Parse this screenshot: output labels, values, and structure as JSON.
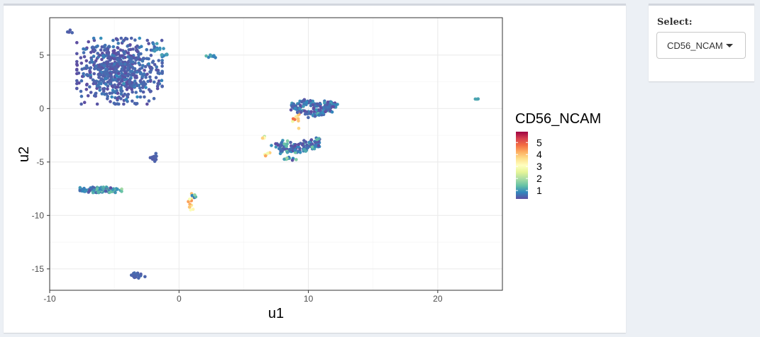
{
  "sidebar": {
    "select_label": "Select:",
    "selected_value": "CD56_NCAM"
  },
  "chart_data": {
    "type": "scatter",
    "xlabel": "u1",
    "ylabel": "u2",
    "xlim": [
      -10,
      25
    ],
    "ylim": [
      -17,
      8.5
    ],
    "x_ticks": [
      -10,
      0,
      10,
      20
    ],
    "x_tick_labels": [
      "-10",
      "0",
      "10",
      "20"
    ],
    "y_ticks": [
      -15,
      -10,
      -5,
      0,
      5
    ],
    "y_tick_labels": [
      "-15",
      "-10",
      "-5",
      "0",
      "5"
    ],
    "grid": true,
    "legend": {
      "title": "CD56_NCAM",
      "placement": "right",
      "colorscale": "Spectral",
      "range": [
        0.3,
        5.9
      ],
      "ticks": [
        1,
        2,
        3,
        4,
        5
      ],
      "tick_labels": [
        "1",
        "2",
        "3",
        "4",
        "5"
      ]
    },
    "colors": {
      "low": "#5e4fa2",
      "high": "#9e0142",
      "panel_border": "#333333",
      "grid": "#ebebeb"
    },
    "clusters": [
      {
        "cx": -4.6,
        "cy": 3.5,
        "sx": 1.5,
        "sy": 1.4,
        "n": 650,
        "value": 0.5,
        "value_sd": 0.15
      },
      {
        "cx": -1.6,
        "cy": 5.6,
        "sx": 0.3,
        "sy": 0.25,
        "n": 14,
        "value": 0.9,
        "value_sd": 0.2
      },
      {
        "cx": -1.0,
        "cy": 5.0,
        "sx": 0.2,
        "sy": 0.1,
        "n": 5,
        "value": 1.1,
        "value_sd": 0.2
      },
      {
        "cx": -8.4,
        "cy": 7.2,
        "sx": 0.1,
        "sy": 0.08,
        "n": 4,
        "value": 0.5,
        "value_sd": 0.05
      },
      {
        "cx": 2.5,
        "cy": 4.9,
        "sx": 0.18,
        "sy": 0.07,
        "n": 10,
        "value": 1.0,
        "value_sd": 0.3
      },
      {
        "cx": -1.9,
        "cy": -4.6,
        "sx": 0.15,
        "sy": 0.18,
        "n": 10,
        "value": 0.5,
        "value_sd": 0.05
      },
      {
        "cx": -6.0,
        "cy": -7.6,
        "sx": 0.75,
        "sy": 0.12,
        "n": 150,
        "value": 0.9,
        "value_sd": 0.35
      },
      {
        "cx": -3.2,
        "cy": -15.6,
        "sx": 0.3,
        "sy": 0.12,
        "n": 18,
        "value": 0.5,
        "value_sd": 0.05
      },
      {
        "cx": 0.9,
        "cy": -8.8,
        "sx": 0.12,
        "sy": 0.4,
        "n": 14,
        "value": 3.6,
        "value_sd": 0.5
      },
      {
        "cx": 1.2,
        "cy": -8.2,
        "sx": 0.12,
        "sy": 0.1,
        "n": 6,
        "value": 1.5,
        "value_sd": 0.8
      },
      {
        "cx": 6.6,
        "cy": -2.7,
        "sx": 0.1,
        "sy": 0.12,
        "n": 5,
        "value": 3.2,
        "value_sd": 0.8
      },
      {
        "cx": 6.7,
        "cy": -4.2,
        "sx": 0.15,
        "sy": 0.1,
        "n": 6,
        "value": 3.5,
        "value_sd": 0.6
      },
      {
        "cx": 8.4,
        "cy": -4.7,
        "sx": 0.3,
        "sy": 0.08,
        "n": 10,
        "value": 1.3,
        "value_sd": 0.5
      },
      {
        "cx": 9.0,
        "cy": -1.0,
        "sx": 0.2,
        "sy": 0.4,
        "n": 10,
        "value": 3.5,
        "value_sd": 0.9
      },
      {
        "cx": 23.0,
        "cy": 0.9,
        "sx": 0.06,
        "sy": 0.05,
        "n": 3,
        "value": 1.2,
        "value_sd": 0.1
      }
    ],
    "arcs": [
      {
        "points": [
          [
            8.8,
            0.0
          ],
          [
            9.5,
            0.5
          ],
          [
            10.3,
            0.6
          ],
          [
            10.8,
            0.0
          ],
          [
            11.5,
            0.4
          ],
          [
            12.0,
            0.3
          ],
          [
            11.5,
            -0.3
          ],
          [
            10.5,
            -0.6
          ],
          [
            9.5,
            -0.3
          ],
          [
            8.8,
            0.2
          ]
        ],
        "n": 160,
        "jitter": 0.18,
        "value": 0.6,
        "value_sd": 0.3
      },
      {
        "points": [
          [
            7.4,
            -3.6
          ],
          [
            8.2,
            -3.3
          ],
          [
            9.2,
            -3.5
          ],
          [
            10.0,
            -3.3
          ],
          [
            10.8,
            -3.1
          ],
          [
            10.2,
            -3.6
          ],
          [
            9.4,
            -3.9
          ],
          [
            8.5,
            -3.8
          ],
          [
            7.6,
            -3.9
          ]
        ],
        "n": 140,
        "jitter": 0.17,
        "value": 0.7,
        "value_sd": 0.4
      }
    ]
  }
}
